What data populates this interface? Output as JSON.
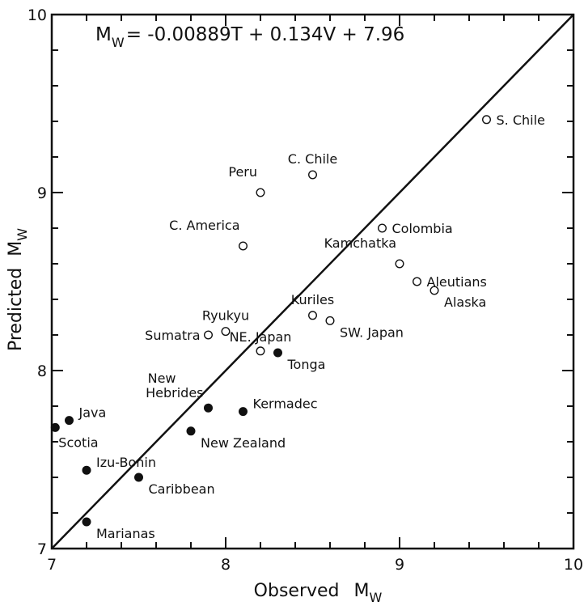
{
  "chart_data": {
    "type": "scatter",
    "title": "",
    "xlabel": "Observed",
    "xlabel_sub": "W",
    "ylabel": "Predicted",
    "ylabel_sub": "W",
    "axis_symbol": "M",
    "xlim": [
      7,
      10
    ],
    "ylim": [
      7,
      10
    ],
    "xticks": [
      7,
      8,
      9,
      10
    ],
    "yticks": [
      7,
      8,
      9,
      10
    ],
    "grid": false,
    "equation": {
      "lhs": "M",
      "lhs_sub": "W",
      "rhs": "= -0.00889T + 0.134V + 7.96"
    },
    "reference_line": {
      "from": [
        7,
        7
      ],
      "to": [
        10,
        10
      ]
    },
    "series": [
      {
        "marker": "open-circle",
        "points": [
          {
            "label": "S. Chile",
            "x": 9.5,
            "y": 9.41,
            "anchor": "right"
          },
          {
            "label": "C. Chile",
            "x": 8.5,
            "y": 9.1,
            "anchor": "above"
          },
          {
            "label": "Peru",
            "x": 8.2,
            "y": 9.0,
            "anchor": "above-left"
          },
          {
            "label": "Colombia",
            "x": 8.9,
            "y": 8.8,
            "anchor": "right"
          },
          {
            "label": "C. America",
            "x": 8.1,
            "y": 8.7,
            "anchor": "above-left"
          },
          {
            "label": "Kamchatka",
            "x": 9.0,
            "y": 8.6,
            "anchor": "above-left"
          },
          {
            "label": "Aleutians",
            "x": 9.1,
            "y": 8.5,
            "anchor": "right"
          },
          {
            "label": "Alaska",
            "x": 9.2,
            "y": 8.45,
            "anchor": "right-below"
          },
          {
            "label": "Ryukyu",
            "x": 8.0,
            "y": 8.22,
            "anchor": "above"
          },
          {
            "label": "Sumatra",
            "x": 7.9,
            "y": 8.2,
            "anchor": "left"
          },
          {
            "label": "Kuriles",
            "x": 8.5,
            "y": 8.31,
            "anchor": "above"
          },
          {
            "label": "SW. Japan",
            "x": 8.6,
            "y": 8.28,
            "anchor": "right-below"
          },
          {
            "label": "NE. Japan",
            "x": 8.2,
            "y": 8.11,
            "anchor": "above-right"
          }
        ]
      },
      {
        "marker": "filled-circle",
        "points": [
          {
            "label": "Tonga",
            "x": 8.3,
            "y": 8.1,
            "anchor": "right-below"
          },
          {
            "label": "New Hebrides",
            "x": 7.9,
            "y": 7.79,
            "anchor": "above-left-2"
          },
          {
            "label": "Kermadec",
            "x": 8.1,
            "y": 7.77,
            "anchor": "right-above"
          },
          {
            "label": "Java",
            "x": 7.1,
            "y": 7.72,
            "anchor": "right-above"
          },
          {
            "label": "Scotia",
            "x": 7.02,
            "y": 7.68,
            "anchor": "below-right"
          },
          {
            "label": "New Zealand",
            "x": 7.8,
            "y": 7.66,
            "anchor": "right-below"
          },
          {
            "label": "Izu-Bonin",
            "x": 7.2,
            "y": 7.44,
            "anchor": "right-above"
          },
          {
            "label": "Caribbean",
            "x": 7.5,
            "y": 7.4,
            "anchor": "right-below"
          },
          {
            "label": "Marianas",
            "x": 7.2,
            "y": 7.15,
            "anchor": "right-below"
          }
        ]
      }
    ]
  }
}
